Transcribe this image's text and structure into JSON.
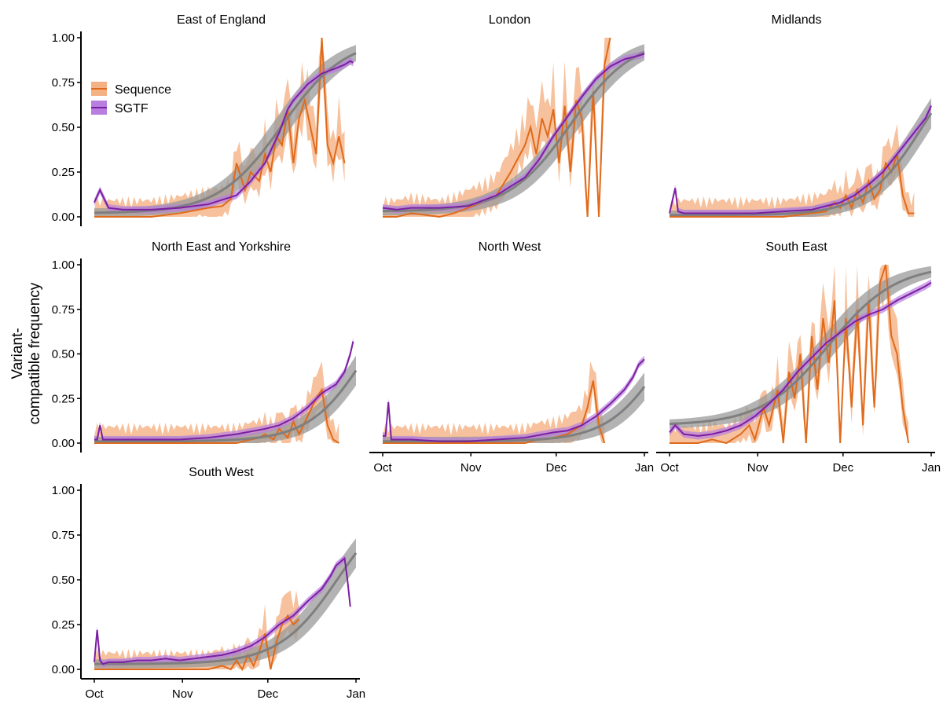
{
  "chart_data": {
    "type": "line",
    "ylabel": "Variant-\ncompatible frequency",
    "xlabel": "",
    "x_ticks": [
      "Oct",
      "Nov",
      "Dec",
      "Jan"
    ],
    "x_domain_days": [
      0,
      92
    ],
    "y_ticks": [
      "0.00",
      "0.25",
      "0.50",
      "0.75",
      "1.00"
    ],
    "ylim": [
      0,
      1
    ],
    "legend": {
      "placement": "top-left of first panel",
      "entries": [
        {
          "name": "Sequence",
          "color": "#E06A1B",
          "fill": "#F4B183"
        },
        {
          "name": "SGTF",
          "color": "#7B1FA2",
          "fill": "#B97FE0"
        }
      ]
    },
    "colors": {
      "sequence_line": "#E06A1B",
      "sequence_band": "#F4B183",
      "sgtf_line": "#7B1FA2",
      "sgtf_band": "#B97FE0",
      "fit_line": "#7F7F7F",
      "fit_band": "#9A9A9A"
    },
    "panels": [
      {
        "title": "East of England",
        "fit": {
          "mid_day": 66,
          "k": 0.09,
          "base": 0.02,
          "end_day": 92
        },
        "sgtf": {
          "x": [
            0,
            2,
            5,
            10,
            20,
            30,
            40,
            50,
            55,
            60,
            65,
            68,
            70,
            75,
            80,
            85,
            88,
            90,
            91
          ],
          "y": [
            0.08,
            0.15,
            0.05,
            0.04,
            0.04,
            0.05,
            0.07,
            0.12,
            0.2,
            0.3,
            0.47,
            0.6,
            0.65,
            0.74,
            0.8,
            0.83,
            0.85,
            0.87,
            0.86
          ]
        },
        "sequence": {
          "x": [
            0,
            10,
            20,
            30,
            40,
            45,
            48,
            50,
            53,
            55,
            58,
            60,
            62,
            64,
            66,
            68,
            70,
            72,
            74,
            76,
            78,
            80,
            82,
            84,
            86,
            88
          ],
          "y": [
            0.0,
            0.0,
            0.0,
            0.02,
            0.05,
            0.06,
            0.1,
            0.3,
            0.15,
            0.25,
            0.2,
            0.35,
            0.25,
            0.45,
            0.4,
            0.6,
            0.3,
            0.55,
            0.65,
            0.5,
            0.35,
            1.0,
            0.4,
            0.3,
            0.45,
            0.3
          ]
        },
        "seq_end_day": 88
      },
      {
        "title": "London",
        "fit": {
          "mid_day": 66,
          "k": 0.092,
          "base": 0.03,
          "end_day": 92
        },
        "sgtf": {
          "x": [
            0,
            5,
            10,
            20,
            30,
            40,
            50,
            55,
            60,
            65,
            70,
            75,
            80,
            85,
            90,
            92
          ],
          "y": [
            0.05,
            0.04,
            0.05,
            0.05,
            0.06,
            0.12,
            0.22,
            0.32,
            0.45,
            0.56,
            0.67,
            0.77,
            0.84,
            0.88,
            0.9,
            0.91
          ]
        },
        "sequence": {
          "x": [
            0,
            5,
            10,
            20,
            25,
            30,
            35,
            40,
            45,
            50,
            52,
            54,
            56,
            58,
            60,
            62,
            64,
            66,
            68,
            70,
            72,
            74,
            76,
            78,
            80
          ],
          "y": [
            0.0,
            0.0,
            0.02,
            0.0,
            0.02,
            0.05,
            0.08,
            0.12,
            0.25,
            0.4,
            0.5,
            0.35,
            0.55,
            0.45,
            0.6,
            0.3,
            0.62,
            0.25,
            0.65,
            0.55,
            0.0,
            0.7,
            0.0,
            0.85,
            1.0
          ]
        },
        "seq_end_day": 80
      },
      {
        "title": "Midlands",
        "fit": {
          "mid_day": 89,
          "k": 0.1,
          "base": 0.01,
          "end_day": 92
        },
        "sgtf": {
          "x": [
            0,
            2,
            3,
            5,
            10,
            20,
            30,
            40,
            50,
            60,
            65,
            70,
            75,
            80,
            85,
            90,
            92
          ],
          "y": [
            0.02,
            0.16,
            0.03,
            0.02,
            0.02,
            0.02,
            0.02,
            0.03,
            0.04,
            0.08,
            0.12,
            0.18,
            0.25,
            0.35,
            0.45,
            0.55,
            0.62
          ]
        },
        "sequence": {
          "x": [
            0,
            10,
            20,
            30,
            40,
            50,
            55,
            58,
            60,
            62,
            64,
            66,
            68,
            70,
            72,
            74,
            76,
            78,
            80,
            82,
            84,
            86
          ],
          "y": [
            0.0,
            0.0,
            0.0,
            0.0,
            0.0,
            0.02,
            0.03,
            0.08,
            0.05,
            0.12,
            0.05,
            0.15,
            0.08,
            0.2,
            0.1,
            0.15,
            0.3,
            0.25,
            0.35,
            0.12,
            0.02,
            0.02
          ]
        },
        "seq_end_day": 86
      },
      {
        "title": "North East and Yorkshire",
        "fit": {
          "mid_day": 96,
          "k": 0.1,
          "base": 0.01,
          "end_day": 92
        },
        "sgtf": {
          "x": [
            0,
            1,
            2,
            3,
            5,
            10,
            20,
            30,
            40,
            50,
            60,
            65,
            70,
            75,
            80,
            85,
            88,
            90,
            91
          ],
          "y": [
            0.02,
            0.02,
            0.1,
            0.02,
            0.02,
            0.02,
            0.02,
            0.02,
            0.03,
            0.05,
            0.08,
            0.1,
            0.14,
            0.2,
            0.28,
            0.33,
            0.4,
            0.5,
            0.57
          ]
        },
        "sequence": {
          "x": [
            0,
            10,
            20,
            30,
            40,
            50,
            55,
            58,
            60,
            63,
            65,
            68,
            70,
            72,
            75,
            78,
            80,
            82,
            84,
            86
          ],
          "y": [
            0.0,
            0.0,
            0.0,
            0.0,
            0.0,
            0.0,
            0.02,
            0.03,
            0.05,
            0.02,
            0.08,
            0.03,
            0.12,
            0.05,
            0.15,
            0.25,
            0.3,
            0.1,
            0.02,
            0.0
          ]
        },
        "seq_end_day": 86
      },
      {
        "title": "North West",
        "fit": {
          "mid_day": 100,
          "k": 0.1,
          "base": 0.01,
          "end_day": 92
        },
        "sgtf": {
          "x": [
            0,
            1,
            2,
            3,
            5,
            10,
            20,
            30,
            40,
            50,
            60,
            65,
            70,
            75,
            80,
            85,
            88,
            90,
            92
          ],
          "y": [
            0.04,
            0.04,
            0.23,
            0.02,
            0.02,
            0.02,
            0.01,
            0.01,
            0.02,
            0.03,
            0.06,
            0.07,
            0.1,
            0.15,
            0.22,
            0.3,
            0.37,
            0.44,
            0.47
          ]
        },
        "sequence": {
          "x": [
            0,
            10,
            20,
            30,
            40,
            50,
            55,
            60,
            65,
            68,
            70,
            72,
            74,
            76,
            78
          ],
          "y": [
            0.0,
            0.0,
            0.0,
            0.0,
            0.0,
            0.0,
            0.02,
            0.03,
            0.05,
            0.08,
            0.1,
            0.2,
            0.35,
            0.1,
            0.0
          ]
        },
        "seq_end_day": 78
      },
      {
        "title": "South East",
        "fit": {
          "mid_day": 56,
          "k": 0.085,
          "base": 0.1,
          "end_day": 92
        },
        "sgtf": {
          "x": [
            0,
            2,
            5,
            10,
            15,
            20,
            25,
            30,
            35,
            40,
            45,
            50,
            55,
            60,
            65,
            70,
            75,
            80,
            85,
            90,
            92
          ],
          "y": [
            0.06,
            0.1,
            0.05,
            0.04,
            0.05,
            0.07,
            0.1,
            0.15,
            0.22,
            0.3,
            0.4,
            0.48,
            0.56,
            0.62,
            0.68,
            0.72,
            0.75,
            0.8,
            0.84,
            0.88,
            0.9
          ]
        },
        "sequence": {
          "x": [
            0,
            10,
            15,
            20,
            25,
            28,
            30,
            33,
            35,
            38,
            40,
            42,
            44,
            46,
            48,
            50,
            52,
            54,
            56,
            58,
            60,
            62,
            64,
            66,
            68,
            70,
            72,
            74,
            76,
            78,
            80,
            82,
            84
          ],
          "y": [
            0.0,
            0.0,
            0.02,
            0.0,
            0.05,
            0.1,
            0.02,
            0.2,
            0.1,
            0.3,
            0.0,
            0.4,
            0.25,
            0.5,
            0.0,
            0.6,
            0.3,
            0.7,
            0.45,
            0.8,
            0.0,
            0.7,
            0.2,
            0.75,
            0.1,
            0.8,
            0.2,
            0.9,
            1.0,
            0.6,
            0.5,
            0.2,
            0.0
          ]
        },
        "seq_end_day": 84
      },
      {
        "title": "South West",
        "fit": {
          "mid_day": 86,
          "k": 0.095,
          "base": 0.03,
          "end_day": 92
        },
        "sgtf": {
          "x": [
            0,
            1,
            2,
            3,
            5,
            10,
            15,
            20,
            25,
            30,
            35,
            40,
            45,
            50,
            55,
            60,
            65,
            70,
            75,
            80,
            83,
            85,
            88,
            89,
            90
          ],
          "y": [
            0.04,
            0.22,
            0.05,
            0.03,
            0.04,
            0.04,
            0.05,
            0.05,
            0.06,
            0.05,
            0.06,
            0.07,
            0.08,
            0.1,
            0.13,
            0.18,
            0.25,
            0.3,
            0.38,
            0.45,
            0.52,
            0.58,
            0.62,
            0.5,
            0.35
          ]
        },
        "sequence": {
          "x": [
            0,
            10,
            20,
            30,
            40,
            45,
            48,
            50,
            52,
            54,
            56,
            58,
            60,
            62,
            64,
            66,
            68,
            70,
            72
          ],
          "y": [
            0.0,
            0.0,
            0.0,
            0.0,
            0.0,
            0.02,
            0.0,
            0.05,
            0.0,
            0.08,
            0.02,
            0.1,
            0.2,
            0.0,
            0.15,
            0.25,
            0.3,
            0.25,
            0.28
          ]
        },
        "seq_end_day": 72
      }
    ]
  }
}
